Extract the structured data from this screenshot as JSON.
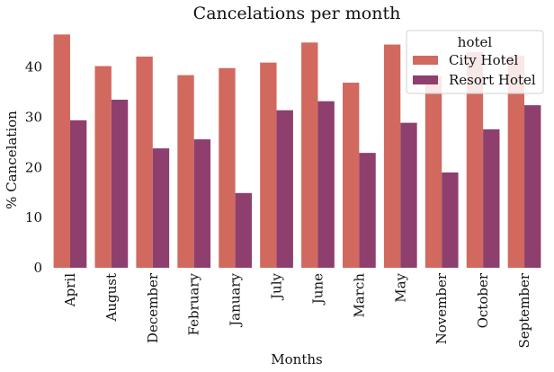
{
  "chart_data": {
    "type": "bar",
    "title": "Cancelations per month",
    "xlabel": "Months",
    "ylabel": "% Cancelation",
    "ylim": [
      0,
      48
    ],
    "yticks": [
      0,
      10,
      20,
      30,
      40
    ],
    "grid": false,
    "legend": {
      "title": "hotel",
      "placement": "top-right"
    },
    "categories": [
      "April",
      "August",
      "December",
      "February",
      "January",
      "July",
      "June",
      "March",
      "May",
      "November",
      "October",
      "September"
    ],
    "series": [
      {
        "name": "City Hotel",
        "color": "#d1695f",
        "values": [
          46.5,
          40.2,
          42.1,
          38.4,
          39.8,
          40.9,
          44.9,
          36.9,
          44.5,
          38.2,
          43.0,
          42.3
        ]
      },
      {
        "name": "Resort Hotel",
        "color": "#8e3f6e",
        "values": [
          29.4,
          33.5,
          23.8,
          25.6,
          14.9,
          31.4,
          33.2,
          22.9,
          28.9,
          19.0,
          27.6,
          32.4
        ]
      }
    ]
  }
}
